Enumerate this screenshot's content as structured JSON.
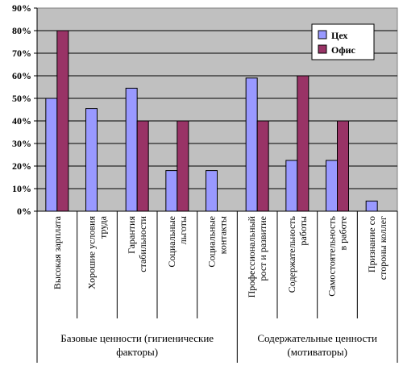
{
  "chart_data": {
    "type": "bar",
    "categories": [
      [
        "Высокая зарплата"
      ],
      [
        "Хорошие условия",
        "труда"
      ],
      [
        "Гарантия",
        "стабильности"
      ],
      [
        "Социальные",
        "льготы"
      ],
      [
        "Социальные",
        "контакты"
      ],
      [
        "Профессиональный",
        "рост и развитие"
      ],
      [
        "Содержательность",
        "работы"
      ],
      [
        "Самостоятельность",
        "в работе"
      ],
      [
        "Признание со",
        "стороны коллег"
      ]
    ],
    "series": [
      {
        "name": "Цех",
        "color": "#9999ff",
        "values": [
          50,
          45.5,
          54.5,
          18,
          18,
          59,
          22.5,
          22.5,
          4.5
        ]
      },
      {
        "name": "Офис",
        "color": "#993366",
        "values": [
          80,
          0,
          40,
          40,
          0,
          40,
          60,
          40,
          0
        ]
      }
    ],
    "yticks": [
      "0%",
      "10%",
      "20%",
      "30%",
      "40%",
      "50%",
      "60%",
      "70%",
      "80%",
      "90%"
    ],
    "ylim": [
      0,
      90
    ],
    "groups": [
      {
        "label_lines": [
          "Базовые ценности (гигиенические",
          "факторы)"
        ],
        "span": [
          0,
          5
        ]
      },
      {
        "label_lines": [
          "Содержательные ценности",
          "(мотиваторы)"
        ],
        "span": [
          5,
          9
        ]
      }
    ],
    "plot_background": "#c0c0c0",
    "grid": true,
    "legend_position": "top-right"
  }
}
